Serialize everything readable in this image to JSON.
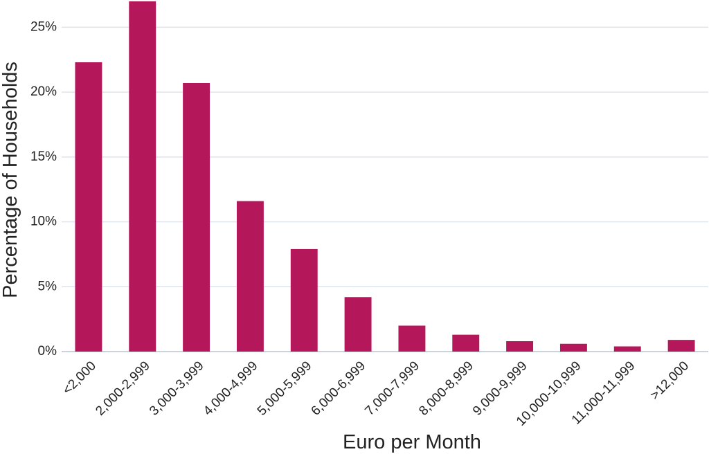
{
  "chart_data": {
    "type": "bar",
    "x_label": "Euro per Month",
    "y_label": "Percentage of Households",
    "categories": [
      "<2,000",
      "2,000-2,999",
      "3,000-3,999",
      "4,000-4,999",
      "5,000-5,999",
      "6,000-6,999",
      "7,000-7,999",
      "8,000-8,999",
      "9,000-9,999",
      "10,000-10,999",
      "11,000-11,999",
      ">12,000"
    ],
    "values": [
      22.3,
      27.0,
      20.7,
      11.6,
      7.9,
      4.2,
      2.0,
      1.3,
      0.8,
      0.6,
      0.4,
      0.9
    ],
    "color": "#b5185a",
    "ylim": [
      0,
      27.1
    ],
    "yticks": [
      {
        "value": 0,
        "label": "0%"
      },
      {
        "value": 5,
        "label": "5%"
      },
      {
        "value": 10,
        "label": "10%"
      },
      {
        "value": 15,
        "label": "15%"
      },
      {
        "value": 20,
        "label": "20%"
      },
      {
        "value": 25,
        "label": "25%"
      }
    ],
    "grid": true
  }
}
